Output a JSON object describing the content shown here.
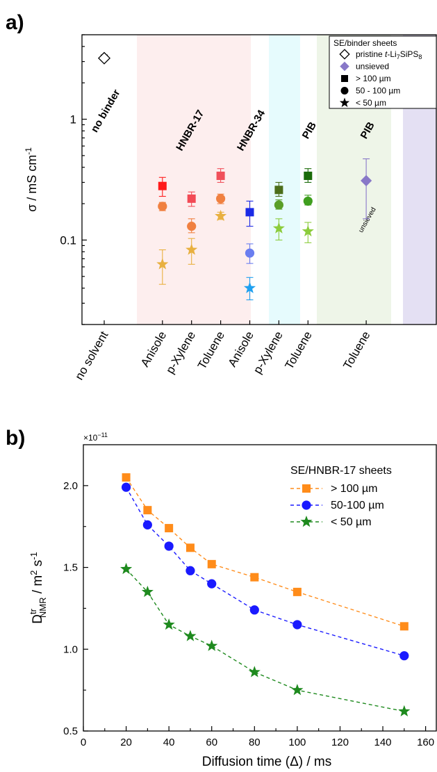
{
  "panel_labels": {
    "a": "a)",
    "b": "b)"
  },
  "colors": {
    "hnbr17_shade": "#fdeeee",
    "hnbr34_shade": "#e6fbfd",
    "pib_shade": "#eef5e8",
    "pib_unsieved_shade": "#e4e0f3",
    "hnbr17_text": "#ff1a1a",
    "hnbr34_text": "#1010ff",
    "pib_text": "#1b6b0a",
    "pib_unsieved_text": "#9a8bd0",
    "unsieved_marker": "#8878c8",
    "b_orange": "#ff8c1a",
    "b_blue": "#1a1aff",
    "b_green": "#1e8a1e"
  },
  "chart_data": [
    {
      "type": "scatter",
      "panel": "a)",
      "ylabel": "σ / mS cm",
      "ylabel_sup": "-1",
      "yscale": "log",
      "ylim": [
        0.02,
        5
      ],
      "yticks": [
        {
          "value": 0.1,
          "label": "0.1"
        },
        {
          "value": 1,
          "label": "1"
        }
      ],
      "categories": [
        "no solvent",
        "Anisole",
        "p-Xylene",
        "Toluene",
        "Anisole",
        "p-Xylene",
        "Toluene",
        "Toluene"
      ],
      "region_labels": [
        {
          "text": "no binder",
          "at": 1,
          "color": "#000000"
        },
        {
          "text": "HNBR-17",
          "at": 4,
          "color": "#ff1a1a"
        },
        {
          "text": "HNBR-34",
          "at": 6,
          "color": "#1010ff"
        },
        {
          "text": "PIB",
          "at": 8,
          "color": "#1b6b0a"
        },
        {
          "text": "PIB",
          "at": 10,
          "color": "#9a8bd0"
        }
      ],
      "annotation": "unsieved",
      "legend": {
        "title": "SE/binder sheets",
        "position": "top-right",
        "items": [
          {
            "label_parts": [
              "pristine ",
              "t",
              "-Li",
              "7",
              "SiPS",
              "8"
            ],
            "marker": "diamond-open"
          },
          {
            "label": "unsieved",
            "marker": "diamond"
          },
          {
            "label": "> 100 µm",
            "marker": "square"
          },
          {
            "label": "50 - 100 µm",
            "marker": "circle"
          },
          {
            "label": "< 50 µm",
            "marker": "star"
          }
        ]
      },
      "series": [
        {
          "name": "pristine t-Li7SiPS8",
          "marker": "diamond-open",
          "points": [
            {
              "x": 1,
              "y": 3.2,
              "err": [
                3.05,
                3.4
              ],
              "color": "#000000"
            }
          ]
        },
        {
          "name": "unsieved",
          "marker": "diamond",
          "points": [
            {
              "x": 10,
              "y": 0.31,
              "err": [
                0.15,
                0.47
              ],
              "color": "#8878c8"
            }
          ]
        },
        {
          "name": "> 100 µm",
          "marker": "square",
          "points": [
            {
              "x": 3,
              "y": 0.28,
              "err": [
                0.23,
                0.33
              ],
              "color": "#ff1a1a"
            },
            {
              "x": 4,
              "y": 0.22,
              "err": [
                0.19,
                0.25
              ],
              "color": "#f24a55"
            },
            {
              "x": 5,
              "y": 0.34,
              "err": [
                0.3,
                0.39
              ],
              "color": "#f0505a"
            },
            {
              "x": 6,
              "y": 0.17,
              "err": [
                0.13,
                0.21
              ],
              "color": "#1a2ae6"
            },
            {
              "x": 7,
              "y": 0.26,
              "err": [
                0.23,
                0.3
              ],
              "color": "#4c6e1a"
            },
            {
              "x": 8,
              "y": 0.34,
              "err": [
                0.3,
                0.39
              ],
              "color": "#1b6b0a"
            }
          ]
        },
        {
          "name": "50 - 100 µm",
          "marker": "circle",
          "points": [
            {
              "x": 3,
              "y": 0.19,
              "err": [
                0.175,
                0.205
              ],
              "color": "#f08040"
            },
            {
              "x": 4,
              "y": 0.13,
              "err": [
                0.115,
                0.15
              ],
              "color": "#f08040"
            },
            {
              "x": 5,
              "y": 0.22,
              "err": [
                0.2,
                0.24
              ],
              "color": "#f08040"
            },
            {
              "x": 6,
              "y": 0.078,
              "err": [
                0.064,
                0.093
              ],
              "color": "#6a7ef0"
            },
            {
              "x": 7,
              "y": 0.195,
              "err": [
                0.18,
                0.215
              ],
              "color": "#5a9e28"
            },
            {
              "x": 8,
              "y": 0.21,
              "err": [
                0.195,
                0.235
              ],
              "color": "#3f9e1e"
            }
          ]
        },
        {
          "name": "< 50 µm",
          "marker": "star",
          "points": [
            {
              "x": 3,
              "y": 0.063,
              "err": [
                0.043,
                0.083
              ],
              "color": "#e8b040"
            },
            {
              "x": 4,
              "y": 0.083,
              "err": [
                0.063,
                0.103
              ],
              "color": "#e8b040"
            },
            {
              "x": 5,
              "y": 0.158,
              "err": [
                0.148,
                0.17
              ],
              "color": "#e8b040"
            },
            {
              "x": 6,
              "y": 0.04,
              "err": [
                0.032,
                0.049
              ],
              "color": "#1ea0f0"
            },
            {
              "x": 7,
              "y": 0.125,
              "err": [
                0.1,
                0.15
              ],
              "color": "#8ccc3c"
            },
            {
              "x": 8,
              "y": 0.118,
              "err": [
                0.095,
                0.14
              ],
              "color": "#8ccc3c"
            }
          ]
        }
      ]
    },
    {
      "type": "line",
      "panel": "b)",
      "xlabel": "Diffusion time (Δ) / ms",
      "xlim": [
        0,
        165
      ],
      "xticks": [
        0,
        20,
        40,
        60,
        80,
        100,
        120,
        140,
        160
      ],
      "ylabel_parts": [
        "D",
        "tr",
        "NMR",
        " / m",
        "2",
        " s",
        "-1"
      ],
      "ylim": [
        0.5,
        2.25
      ],
      "yticks": [
        "0.5",
        "1.0",
        "1.5",
        "2.0"
      ],
      "y_multiplier": "×10",
      "y_multiplier_exp": "−11",
      "legend": {
        "title": "SE/HNBR-17 sheets",
        "position": "top-right"
      },
      "series": [
        {
          "name": "> 100 µm",
          "marker": "square",
          "color": "#ff8c1a",
          "x": [
            20,
            30,
            40,
            50,
            60,
            80,
            100,
            150
          ],
          "y": [
            2.05,
            1.85,
            1.74,
            1.62,
            1.52,
            1.44,
            1.35,
            1.14
          ]
        },
        {
          "name": "50-100 µm",
          "marker": "circle",
          "color": "#1a1aff",
          "x": [
            20,
            30,
            40,
            50,
            60,
            80,
            100,
            150
          ],
          "y": [
            1.99,
            1.76,
            1.63,
            1.48,
            1.4,
            1.24,
            1.15,
            0.96
          ]
        },
        {
          "name": "< 50 µm",
          "marker": "star",
          "color": "#1e8a1e",
          "x": [
            20,
            30,
            40,
            50,
            60,
            80,
            100,
            150
          ],
          "y": [
            1.49,
            1.35,
            1.15,
            1.08,
            1.02,
            0.86,
            0.75,
            0.62
          ]
        }
      ]
    }
  ]
}
